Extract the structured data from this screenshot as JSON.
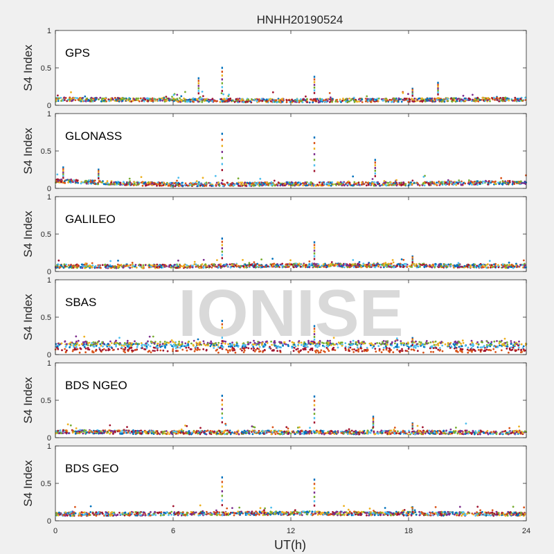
{
  "figure": {
    "title": "HNHH20190524",
    "xlabel": "UT(h)",
    "ylabel": "S4 Index",
    "watermark": "IONISE",
    "xticks": [
      "0",
      "6",
      "12",
      "18",
      "24"
    ],
    "yticks": [
      "0",
      "0.5",
      "1"
    ]
  },
  "colors": [
    "#0072BD",
    "#D95319",
    "#EDB120",
    "#7E2F8E",
    "#77AC30",
    "#4DBEEE",
    "#A2142F"
  ],
  "chart_data": [
    {
      "type": "scatter",
      "panel": "GPS",
      "xlim": [
        0,
        24
      ],
      "ylim": [
        0,
        1
      ],
      "grid": false,
      "baseline": [
        [
          0,
          0.08
        ],
        [
          6,
          0.07
        ],
        [
          12,
          0.06
        ],
        [
          18,
          0.07
        ],
        [
          24,
          0.08
        ]
      ],
      "spikes": [
        {
          "x": 7.3,
          "y": 0.36
        },
        {
          "x": 8.5,
          "y": 0.5
        },
        {
          "x": 13.2,
          "y": 0.38
        },
        {
          "x": 18.2,
          "y": 0.22
        },
        {
          "x": 19.5,
          "y": 0.3
        }
      ]
    },
    {
      "type": "scatter",
      "panel": "GLONASS",
      "xlim": [
        0,
        24
      ],
      "ylim": [
        0,
        1
      ],
      "grid": false,
      "baseline": [
        [
          0,
          0.1
        ],
        [
          3,
          0.07
        ],
        [
          6,
          0.05
        ],
        [
          12,
          0.06
        ],
        [
          18,
          0.06
        ],
        [
          24,
          0.08
        ]
      ],
      "spikes": [
        {
          "x": 0.4,
          "y": 0.28
        },
        {
          "x": 2.2,
          "y": 0.25
        },
        {
          "x": 8.5,
          "y": 0.73
        },
        {
          "x": 13.2,
          "y": 0.68
        },
        {
          "x": 16.3,
          "y": 0.38
        }
      ]
    },
    {
      "type": "scatter",
      "panel": "GALILEO",
      "xlim": [
        0,
        24
      ],
      "ylim": [
        0,
        1
      ],
      "grid": false,
      "baseline": [
        [
          0,
          0.07
        ],
        [
          6,
          0.07
        ],
        [
          12,
          0.08
        ],
        [
          18,
          0.08
        ],
        [
          24,
          0.07
        ]
      ],
      "spikes": [
        {
          "x": 8.5,
          "y": 0.44
        },
        {
          "x": 13.2,
          "y": 0.39
        },
        {
          "x": 18.2,
          "y": 0.2
        }
      ]
    },
    {
      "type": "scatter",
      "panel": "SBAS",
      "xlim": [
        0,
        24
      ],
      "ylim": [
        0,
        1
      ],
      "grid": false,
      "baseline": [
        [
          0,
          0.12
        ],
        [
          24,
          0.12
        ]
      ],
      "spikes": [
        {
          "x": 8.5,
          "y": 0.45
        },
        {
          "x": 13.2,
          "y": 0.38
        },
        {
          "x": 18.2,
          "y": 0.22
        }
      ]
    },
    {
      "type": "scatter",
      "panel": "BDS NGEO",
      "xlim": [
        0,
        24
      ],
      "ylim": [
        0,
        1
      ],
      "grid": false,
      "baseline": [
        [
          0,
          0.08
        ],
        [
          6,
          0.07
        ],
        [
          12,
          0.07
        ],
        [
          18,
          0.07
        ],
        [
          24,
          0.07
        ]
      ],
      "spikes": [
        {
          "x": 8.5,
          "y": 0.56
        },
        {
          "x": 13.2,
          "y": 0.55
        },
        {
          "x": 16.2,
          "y": 0.28
        },
        {
          "x": 18.2,
          "y": 0.19
        }
      ]
    },
    {
      "type": "scatter",
      "panel": "BDS GEO",
      "xlim": [
        0,
        24
      ],
      "ylim": [
        0,
        1
      ],
      "grid": false,
      "baseline": [
        [
          0,
          0.09
        ],
        [
          12,
          0.1
        ],
        [
          24,
          0.09
        ]
      ],
      "spikes": [
        {
          "x": 8.5,
          "y": 0.58
        },
        {
          "x": 13.2,
          "y": 0.55
        },
        {
          "x": 18.2,
          "y": 0.18
        }
      ]
    }
  ]
}
